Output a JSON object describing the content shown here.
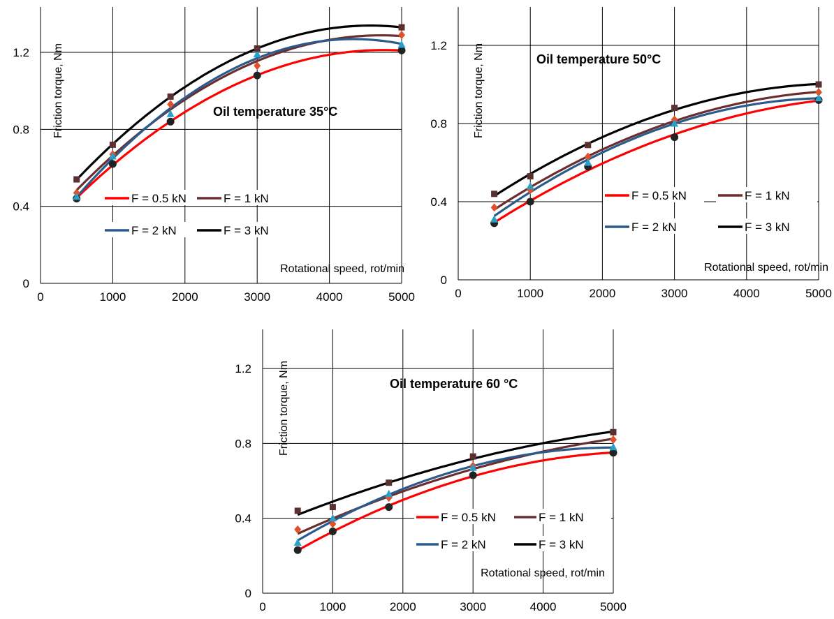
{
  "chart_data": [
    {
      "type": "line",
      "title": "Oil temperature 35°C",
      "xlabel": "Rotational speed, rot/min",
      "ylabel": "Friction torque, Nm",
      "xlim": [
        0,
        5000
      ],
      "ylim": [
        0,
        1.2
      ],
      "xticks": [
        "0",
        "1000",
        "2000",
        "3000",
        "4000",
        "5000"
      ],
      "yticks": [
        "0",
        "0.4",
        "0.8",
        "1.2"
      ],
      "grid": true,
      "x": [
        500,
        1000,
        1800,
        3000,
        5000
      ],
      "series": [
        {
          "name": "F = 0.5 kN",
          "color": "#ff0000",
          "values": [
            0.44,
            0.62,
            0.84,
            1.08,
            1.21
          ]
        },
        {
          "name": "F = 1 kN",
          "color": "#6b2e2e",
          "values": [
            0.47,
            0.67,
            0.93,
            1.13,
            1.29
          ]
        },
        {
          "name": "F = 2 kN",
          "color": "#2b5a8c",
          "values": [
            0.45,
            0.66,
            0.88,
            1.19,
            1.24
          ]
        },
        {
          "name": "F = 3 kN",
          "color": "#000000",
          "values": [
            0.54,
            0.72,
            0.97,
            1.22,
            1.33
          ]
        }
      ]
    },
    {
      "type": "line",
      "title": "Oil temperature 50°C",
      "xlabel": "Rotational speed, rot/min",
      "ylabel": "Friction torque, Nm",
      "xlim": [
        0,
        5000
      ],
      "ylim": [
        0,
        1.2
      ],
      "xticks": [
        "0",
        "1000",
        "2000",
        "3000",
        "4000",
        "5000"
      ],
      "yticks": [
        "0",
        "0.4",
        "0.8",
        "1.2"
      ],
      "grid": true,
      "x": [
        500,
        1000,
        1800,
        3000,
        5000
      ],
      "series": [
        {
          "name": "F = 0.5 kN",
          "color": "#ff0000",
          "values": [
            0.29,
            0.4,
            0.58,
            0.73,
            0.92
          ]
        },
        {
          "name": "F = 1 kN",
          "color": "#6b2e2e",
          "values": [
            0.37,
            0.46,
            0.63,
            0.82,
            0.96
          ]
        },
        {
          "name": "F = 2 kN",
          "color": "#2b5a8c",
          "values": [
            0.31,
            0.48,
            0.6,
            0.8,
            0.93
          ]
        },
        {
          "name": "F = 3 kN",
          "color": "#000000",
          "values": [
            0.44,
            0.53,
            0.69,
            0.88,
            1.0
          ]
        }
      ]
    },
    {
      "type": "line",
      "title": "Oil temperature 60 °C",
      "xlabel": "Rotational speed, rot/min",
      "ylabel": "Friction torque, Nm",
      "xlim": [
        0,
        5000
      ],
      "ylim": [
        0,
        1.2
      ],
      "xticks": [
        "0",
        "1000",
        "2000",
        "3000",
        "4000",
        "5000"
      ],
      "yticks": [
        "0",
        "0.4",
        "0.8",
        "1.2"
      ],
      "grid": true,
      "x": [
        500,
        1000,
        1800,
        3000,
        5000
      ],
      "series": [
        {
          "name": "F = 0.5 kN",
          "color": "#ff0000",
          "values": [
            0.23,
            0.33,
            0.46,
            0.63,
            0.75
          ]
        },
        {
          "name": "F = 1 kN",
          "color": "#6b2e2e",
          "values": [
            0.34,
            0.37,
            0.51,
            0.68,
            0.82
          ]
        },
        {
          "name": "F = 2 kN",
          "color": "#2b5a8c",
          "values": [
            0.27,
            0.4,
            0.53,
            0.67,
            0.78
          ]
        },
        {
          "name": "F = 3 kN",
          "color": "#000000",
          "values": [
            0.44,
            0.46,
            0.59,
            0.73,
            0.86
          ]
        }
      ]
    }
  ]
}
